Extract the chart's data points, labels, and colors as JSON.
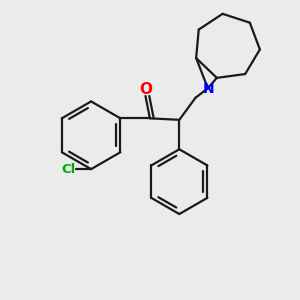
{
  "background_color": "#ebebeb",
  "bond_color": "#1a1a1a",
  "cl_color": "#00aa00",
  "o_color": "#ff0000",
  "n_color": "#0000ff",
  "line_width": 1.6,
  "fig_size": [
    3.0,
    3.0
  ],
  "dpi": 100,
  "xlim": [
    0,
    10
  ],
  "ylim": [
    0,
    10
  ]
}
